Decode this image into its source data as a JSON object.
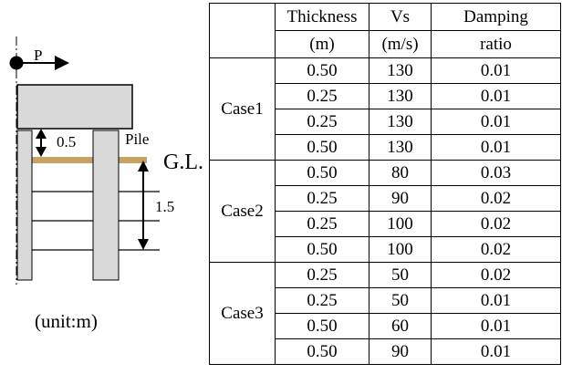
{
  "diagram": {
    "load_label": "P",
    "dim_top_label": "0.5",
    "pile_label": "Pile",
    "gl_label": "G.L.",
    "dim_depth_label": "1.5",
    "unit_label": "(unit:m)",
    "colors": {
      "footing_fill": "#d9d9d9",
      "ground_surface": "#c8a165",
      "line": "#000000"
    }
  },
  "table": {
    "headers": {
      "thickness": [
        "Thickness",
        "(m)"
      ],
      "vs": [
        "Vs",
        "(m/s)"
      ],
      "damping": [
        "Damping",
        "ratio"
      ]
    },
    "cases": [
      {
        "name": "Case1",
        "rows": [
          {
            "thickness": "0.50",
            "vs": "130",
            "damping": "0.01"
          },
          {
            "thickness": "0.25",
            "vs": "130",
            "damping": "0.01"
          },
          {
            "thickness": "0.25",
            "vs": "130",
            "damping": "0.01"
          },
          {
            "thickness": "0.50",
            "vs": "130",
            "damping": "0.01"
          }
        ]
      },
      {
        "name": "Case2",
        "rows": [
          {
            "thickness": "0.50",
            "vs": "80",
            "damping": "0.03"
          },
          {
            "thickness": "0.25",
            "vs": "90",
            "damping": "0.02"
          },
          {
            "thickness": "0.25",
            "vs": "100",
            "damping": "0.02"
          },
          {
            "thickness": "0.50",
            "vs": "100",
            "damping": "0.02"
          }
        ]
      },
      {
        "name": "Case3",
        "rows": [
          {
            "thickness": "0.25",
            "vs": "50",
            "damping": "0.02"
          },
          {
            "thickness": "0.25",
            "vs": "50",
            "damping": "0.01"
          },
          {
            "thickness": "0.50",
            "vs": "60",
            "damping": "0.01"
          },
          {
            "thickness": "0.50",
            "vs": "90",
            "damping": "0.01"
          }
        ]
      }
    ]
  }
}
